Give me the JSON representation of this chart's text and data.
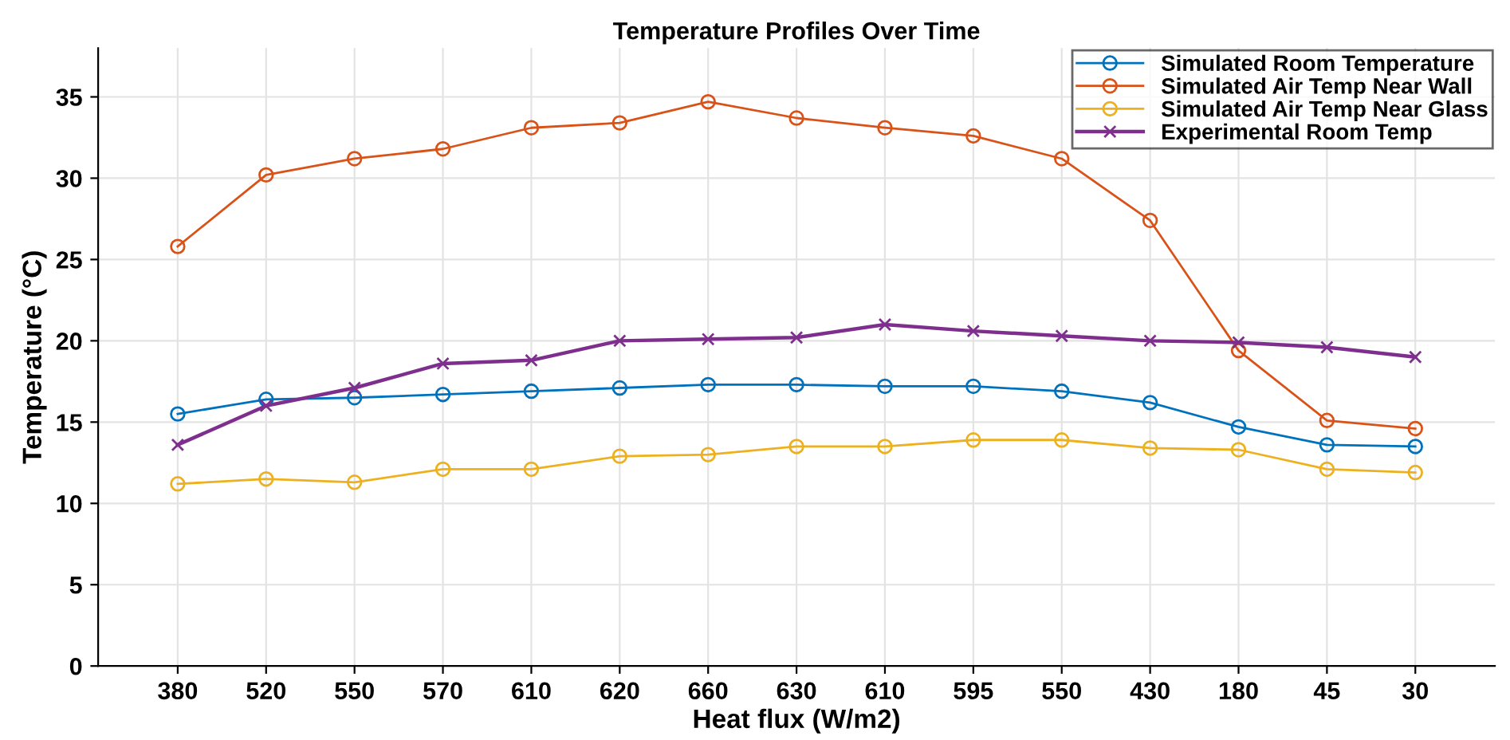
{
  "chart_data": {
    "type": "line",
    "title": "Temperature Profiles Over Time",
    "xlabel": "Heat flux (W/m2)",
    "ylabel": "Temperature (°C)",
    "categories": [
      "380",
      "520",
      "550",
      "570",
      "610",
      "620",
      "660",
      "630",
      "610",
      "595",
      "550",
      "430",
      "180",
      "45",
      "30"
    ],
    "series": [
      {
        "name": "Simulated Room Temperature",
        "color": "#0072bd",
        "marker": "circle",
        "values": [
          15.5,
          16.4,
          16.5,
          16.7,
          16.9,
          17.1,
          17.3,
          17.3,
          17.2,
          17.2,
          16.9,
          16.2,
          14.7,
          13.6,
          13.5
        ]
      },
      {
        "name": "Simulated Air Temp Near Wall",
        "color": "#d95319",
        "marker": "circle",
        "values": [
          25.8,
          30.2,
          31.2,
          31.8,
          33.1,
          33.4,
          34.7,
          33.7,
          33.1,
          32.6,
          31.2,
          27.4,
          19.4,
          15.1,
          14.6
        ]
      },
      {
        "name": "Simulated Air Temp Near Glass",
        "color": "#edb120",
        "marker": "circle",
        "values": [
          11.2,
          11.5,
          11.3,
          12.1,
          12.1,
          12.9,
          13.0,
          13.5,
          13.5,
          13.9,
          13.9,
          13.4,
          13.3,
          12.1,
          11.9
        ]
      },
      {
        "name": "Experimental Room Temp",
        "color": "#7e2f8e",
        "marker": "cross",
        "values": [
          13.6,
          16.0,
          17.1,
          18.6,
          18.8,
          20.0,
          20.1,
          20.2,
          21.0,
          20.6,
          20.3,
          20.0,
          19.9,
          19.6,
          19.0
        ]
      }
    ],
    "ylim": [
      0,
      38
    ],
    "yticks": [
      0,
      5,
      10,
      15,
      20,
      25,
      30,
      35
    ],
    "grid": true,
    "legend": "top right",
    "line_style": "solid"
  }
}
